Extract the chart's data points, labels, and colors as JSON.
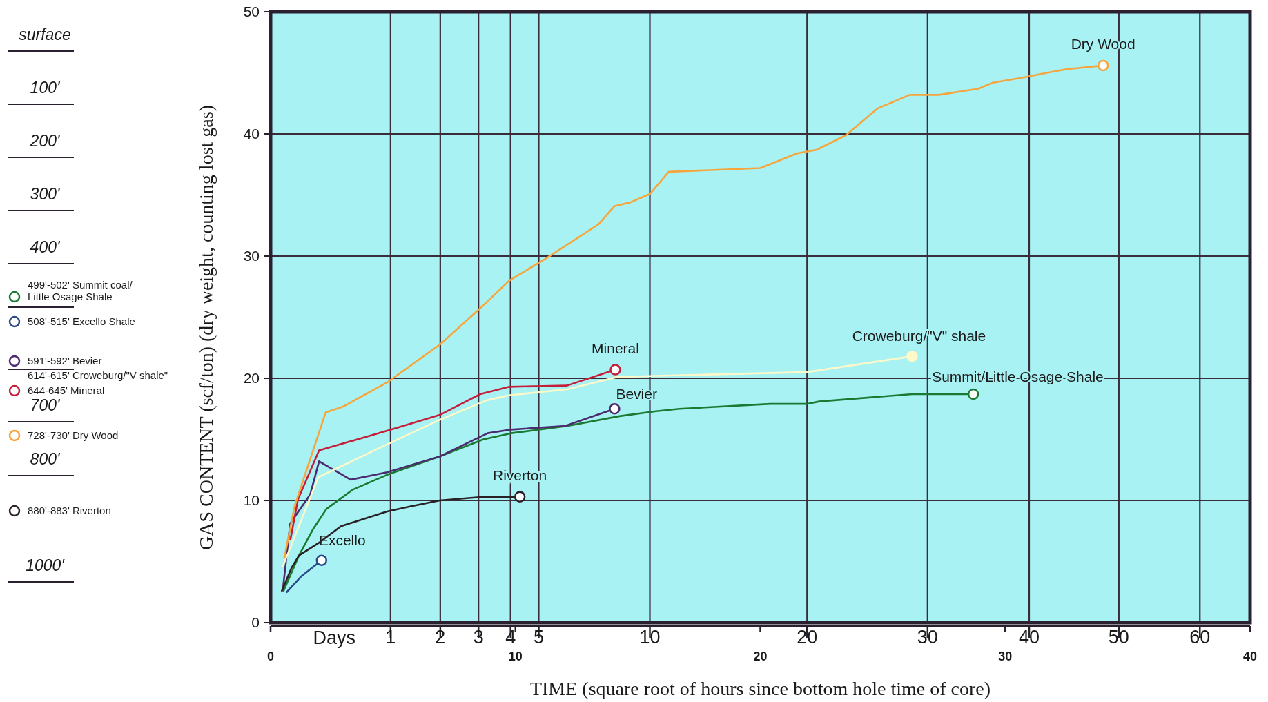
{
  "chart_data": {
    "type": "line",
    "xlabel": "TIME (square root of hours since bottom hole time of core)",
    "ylabel": "GAS CONTENT (scf/ton) (dry weight, counting lost gas)",
    "xlim": [
      0,
      40
    ],
    "xticks": [
      0,
      10,
      20,
      30,
      40
    ],
    "ref_lines": [
      {
        "axis": "x",
        "value": 4.9
      },
      {
        "axis": "x",
        "value": 6.93
      },
      {
        "axis": "x",
        "value": 8.49
      },
      {
        "axis": "x",
        "value": 9.8
      },
      {
        "axis": "x",
        "value": 10.95
      },
      {
        "axis": "x",
        "value": 15.49
      },
      {
        "axis": "x",
        "value": 21.91
      },
      {
        "axis": "x",
        "value": 26.83
      },
      {
        "axis": "x",
        "value": 30.98
      },
      {
        "axis": "x",
        "value": 34.64
      },
      {
        "axis": "x",
        "value": 37.95
      }
    ],
    "ylim": [
      0,
      50
    ],
    "yticks": [
      0,
      10,
      20,
      30,
      40,
      50
    ],
    "grid": "y",
    "line_style": "solid",
    "series": [
      {
        "name": "Summit/Little Osage Shale",
        "color": "#1b7a32",
        "x": [
          0.53,
          1.16,
          1.75,
          2.28,
          3.37,
          4.76,
          6.91,
          8.69,
          9.82,
          12.13,
          14.25,
          15.74,
          16.7,
          20.4,
          21.9,
          22.4,
          26.2,
          28.7
        ],
        "values": [
          2.6,
          5.5,
          7.7,
          9.3,
          10.9,
          12.1,
          13.6,
          15.0,
          15.5,
          16.1,
          16.9,
          17.3,
          17.5,
          17.9,
          17.9,
          18.1,
          18.7,
          18.7
        ]
      },
      {
        "name": "Excello",
        "color": "#2a4a8a",
        "x": [
          0.66,
          1.26,
          2.08
        ],
        "values": [
          2.5,
          3.8,
          5.1
        ]
      },
      {
        "name": "Bevier",
        "color": "#4b2a6e",
        "x": [
          0.5,
          0.8,
          1.0,
          1.62,
          1.98,
          3.27,
          4.76,
          6.91,
          8.86,
          9.82,
          12.03,
          14.05
        ],
        "values": [
          2.7,
          8.1,
          8.7,
          10.5,
          13.2,
          11.7,
          12.3,
          13.6,
          15.5,
          15.8,
          16.1,
          17.5
        ]
      },
      {
        "name": "Croweburg/\"V\" shale",
        "color": "#fff8c8",
        "x": [
          0.5,
          1.95,
          4.76,
          6.91,
          8.83,
          9.72,
          12.1,
          14.15,
          15.74,
          21.9,
          26.2
        ],
        "values": [
          4.6,
          11.9,
          14.6,
          16.6,
          18.2,
          18.6,
          19.1,
          20.1,
          20.2,
          20.5,
          21.8
        ]
      },
      {
        "name": "Mineral",
        "color": "#c41e3a",
        "x": [
          0.81,
          1.12,
          1.98,
          4.76,
          6.91,
          8.56,
          9.72,
          12.1,
          14.08
        ],
        "values": [
          6.8,
          10.1,
          14.1,
          15.7,
          17.0,
          18.7,
          19.3,
          19.4,
          20.7
        ]
      },
      {
        "name": "Dry Wood",
        "color": "#f5a53c",
        "x": [
          0.56,
          0.99,
          2.25,
          2.98,
          4.79,
          6.94,
          8.6,
          9.75,
          11.24,
          13.39,
          14.05,
          14.7,
          15.5,
          16.26,
          20.0,
          21.5,
          22.3,
          23.5,
          24.8,
          26.1,
          27.3,
          28.9,
          29.5,
          30.7,
          31.7,
          32.5,
          34.0
        ],
        "values": [
          5.3,
          9.6,
          17.2,
          17.7,
          19.7,
          22.8,
          25.8,
          28.0,
          29.8,
          32.6,
          34.1,
          34.4,
          35.1,
          36.9,
          37.2,
          38.4,
          38.7,
          39.9,
          42.1,
          43.2,
          43.2,
          43.7,
          44.2,
          44.6,
          45.0,
          45.3,
          45.6
        ]
      },
      {
        "name": "Riverton",
        "color": "#2b2026",
        "x": [
          0.46,
          0.86,
          1.16,
          1.95,
          2.88,
          4.76,
          5.69,
          6.91,
          8.69,
          10.18
        ],
        "values": [
          2.6,
          4.5,
          5.5,
          6.5,
          7.9,
          9.1,
          9.5,
          10.0,
          10.3,
          10.3
        ]
      }
    ],
    "annotations": [
      "surface",
      "100'",
      "200'",
      "300'",
      "400'",
      "499'-502' Summit coal/\nLittle Osage Shale",
      "508'-515' Excello Shale",
      "591'-592' Bevier",
      "614'-615' Croweburg/\"V shale\"",
      "644-645' Mineral",
      "700'",
      "728'-730' Dry Wood",
      "800'",
      "880'-883' Riverton",
      "1000'",
      "Days",
      "1",
      "2",
      "3",
      "4",
      "5",
      "10",
      "20",
      "30",
      "40",
      "50",
      "60"
    ]
  }
}
